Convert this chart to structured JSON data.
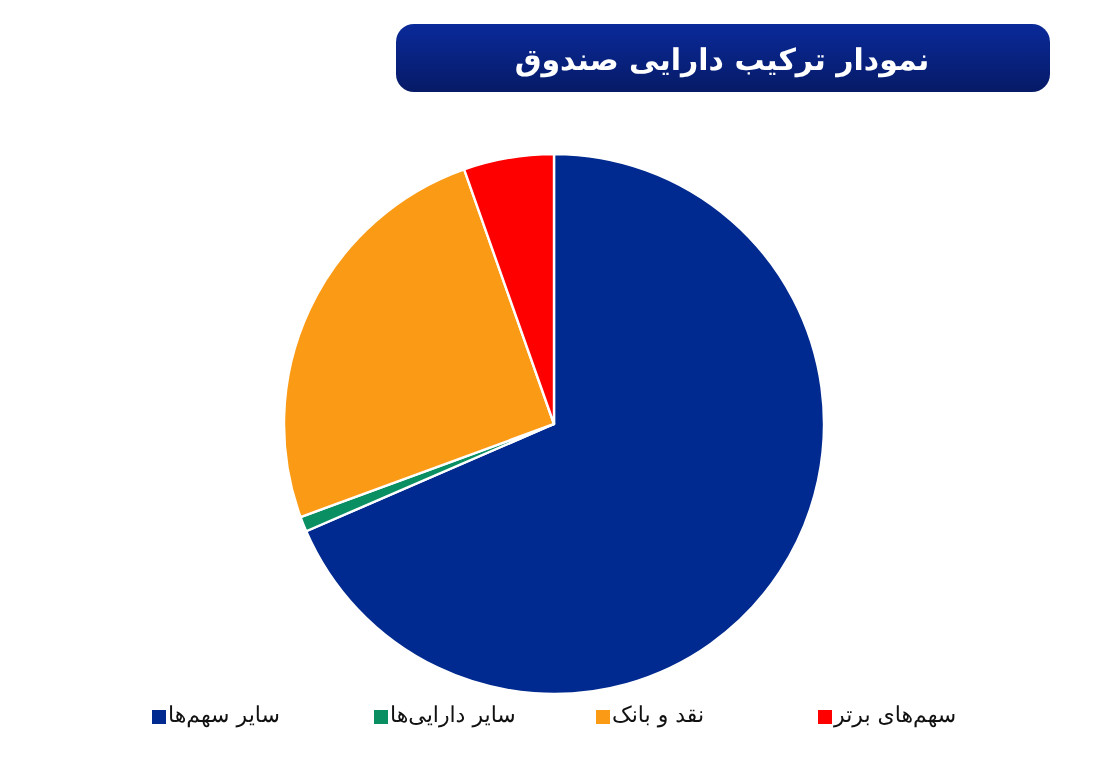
{
  "chart_data": {
    "type": "pie",
    "title": "نمودار ترکیب دارایی صندوق",
    "categories": [
      "سایر سهم‌ها",
      "سایر دارایی‌ها",
      "نقد و بانک",
      "سهم‌های برتر"
    ],
    "values": [
      68.5,
      0.9,
      25.2,
      5.4
    ],
    "colors": [
      "#002a8f",
      "#0a8f62",
      "#fb9a14",
      "#ff0000"
    ],
    "legend": "bottom"
  }
}
